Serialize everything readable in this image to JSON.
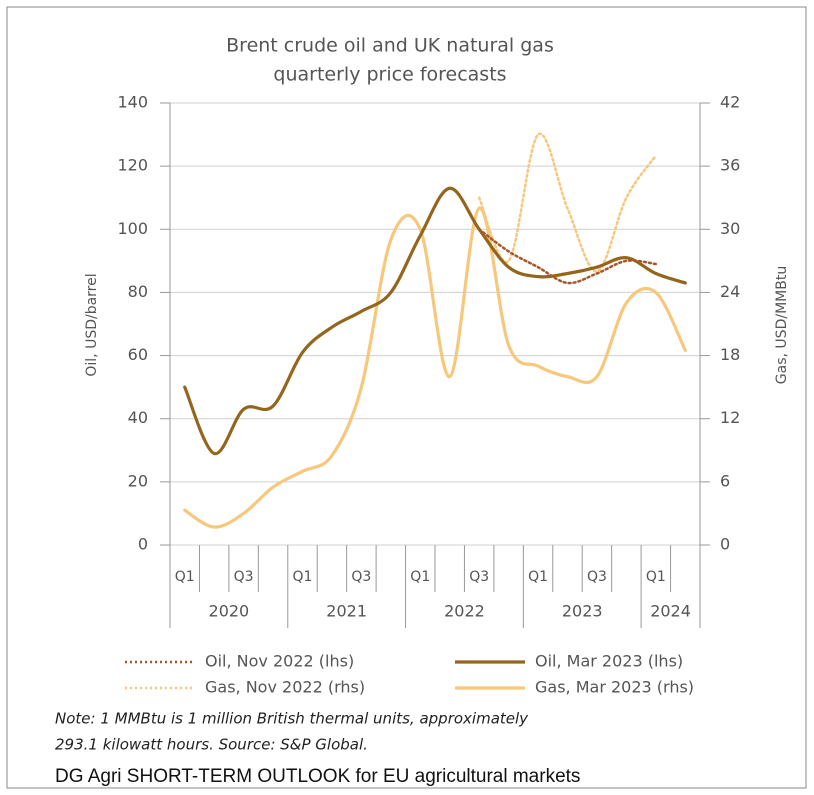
{
  "chart_data": {
    "type": "line",
    "title": [
      "Brent crude oil and UK natural gas",
      "quarterly price forecasts"
    ],
    "y_label": "Oil, USD/barrel",
    "y2_label": "Gas, USD/MMBtu",
    "categories": [
      "Q1",
      null,
      "Q3",
      null,
      "Q1",
      null,
      "Q3",
      null,
      "Q1",
      null,
      "Q3",
      null,
      "Q1",
      null,
      "Q3",
      null,
      "Q1",
      null
    ],
    "year_labels": [
      "2020",
      "2021",
      "2022",
      "2023",
      "2024"
    ],
    "ylim": [
      0,
      140
    ],
    "yticks": [
      0,
      20,
      40,
      60,
      80,
      100,
      120,
      140
    ],
    "y2lim": [
      0,
      42
    ],
    "y2ticks": [
      0,
      6,
      12,
      18,
      24,
      30,
      36,
      42
    ],
    "grid": true,
    "series": [
      {
        "name": "Oil, Nov 2022 (lhs)",
        "color": "#a9572a",
        "style": "dotted",
        "axis": "y",
        "values": [
          null,
          null,
          null,
          null,
          null,
          null,
          null,
          null,
          null,
          null,
          100,
          93,
          88,
          83,
          86,
          90,
          89,
          null
        ]
      },
      {
        "name": "Oil, Mar 2023 (lhs)",
        "color": "#94651c",
        "style": "solid",
        "axis": "y",
        "values": [
          50,
          29,
          43,
          44,
          61,
          69,
          74,
          80,
          98,
          113,
          100,
          88,
          85,
          86,
          88,
          91,
          86,
          83
        ]
      },
      {
        "name": "Gas, Nov 2022 (rhs)",
        "color": "#f7c77c",
        "style": "dotted",
        "axis": "y2",
        "values": [
          null,
          null,
          null,
          null,
          null,
          null,
          null,
          null,
          null,
          null,
          33,
          27,
          39,
          32,
          26,
          33,
          37,
          null
        ]
      },
      {
        "name": "Gas, Mar 2023 (rhs)",
        "color": "#f7c77c",
        "style": "solid",
        "axis": "y2",
        "values": [
          3.3,
          1.7,
          3.0,
          5.5,
          7,
          8.5,
          15,
          29,
          30,
          16,
          32,
          19,
          17,
          16,
          16,
          23,
          24,
          18.5
        ]
      }
    ],
    "note": [
      "Note: 1 MMBtu is 1 million British thermal units, approximately",
      "293.1 kilowatt hours. Source: S&P Global."
    ]
  },
  "footer": "DG Agri SHORT-TERM OUTLOOK for EU agricultural markets"
}
